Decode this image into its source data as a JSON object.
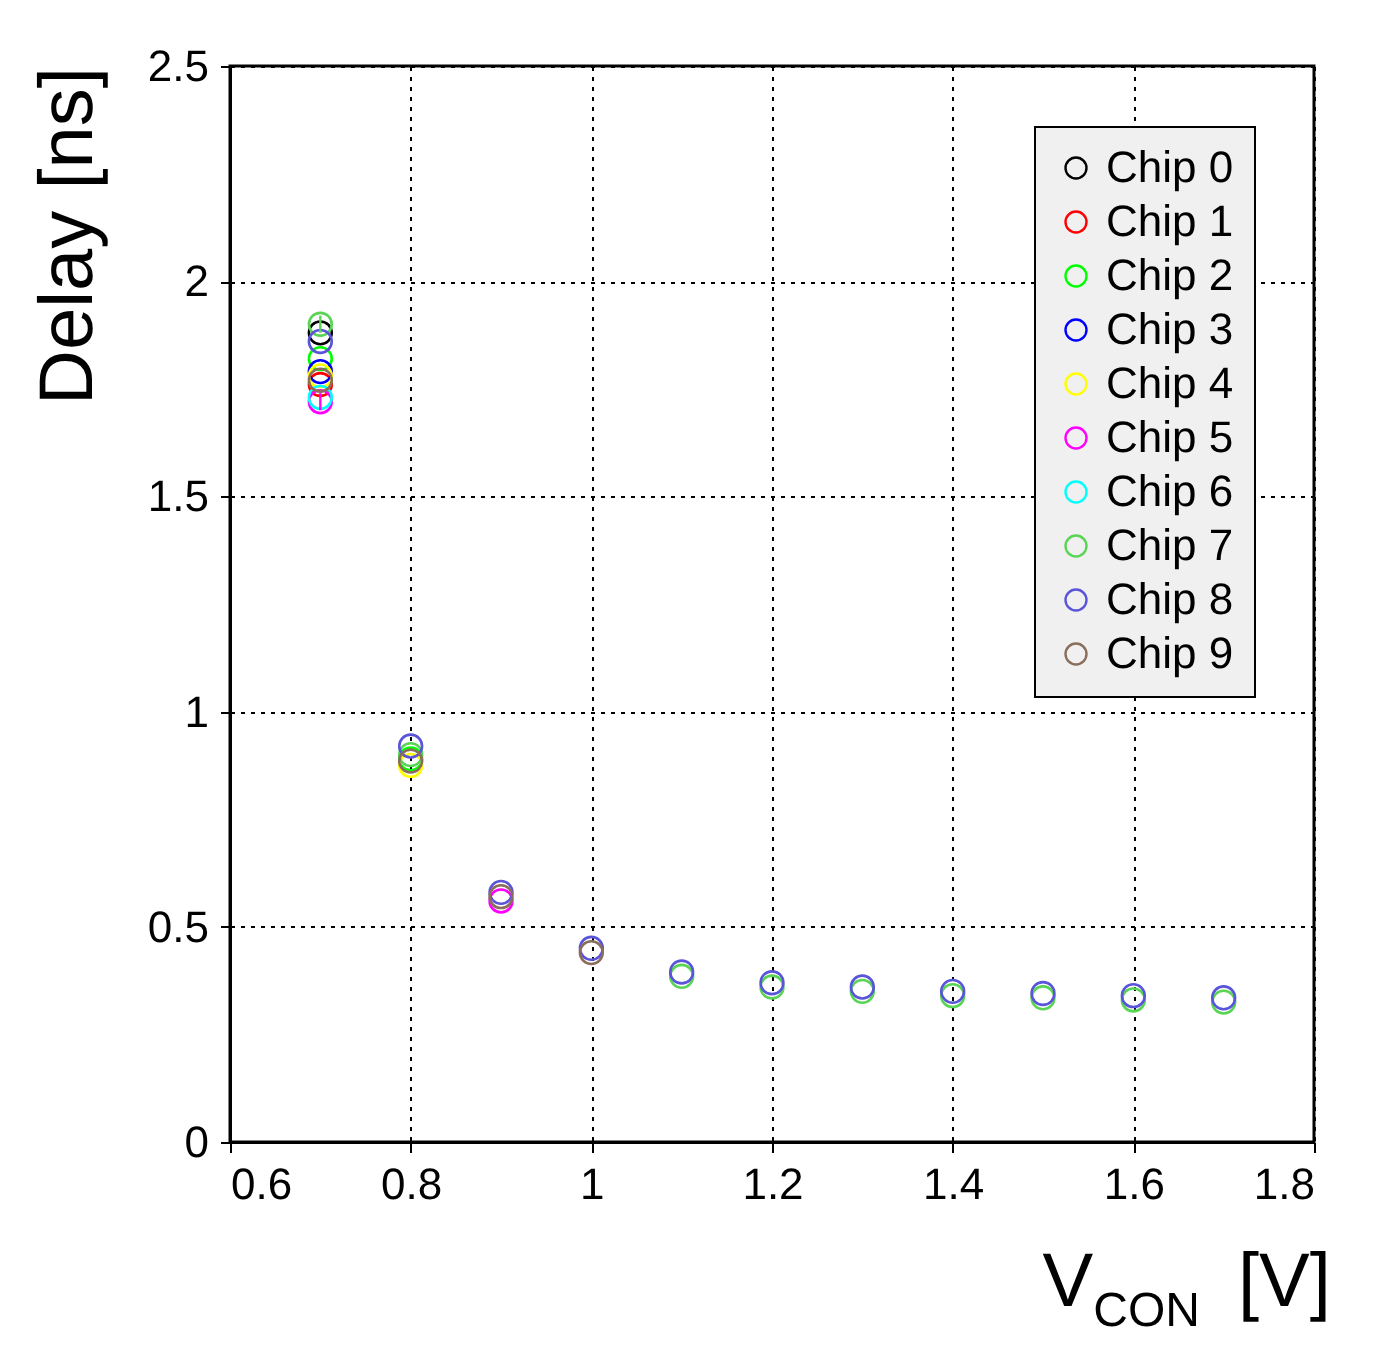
{
  "chart_data": {
    "type": "scatter",
    "xlabel": "V$_{CON}$ [V]",
    "ylabel": "Delay [ns]",
    "x": [
      0.7,
      0.8,
      0.9,
      1.0,
      1.1,
      1.2,
      1.3,
      1.4,
      1.5,
      1.6,
      1.7
    ],
    "xlim": [
      0.6,
      1.8
    ],
    "xticks": [
      0.6,
      0.8,
      {
        "value": 1,
        "label": "1"
      },
      1.2,
      1.4,
      1.6,
      1.8
    ],
    "ylim": [
      0,
      2.5
    ],
    "yticks": [
      {
        "value": 0,
        "label": "0"
      },
      0.5,
      {
        "value": 1,
        "label": "1"
      },
      1.5,
      {
        "value": 2,
        "label": "2"
      },
      2.5
    ],
    "grid": true,
    "legend": "top right",
    "marker": "circle",
    "series": [
      {
        "name": "Chip 0",
        "color": "#000000",
        "values": [
          1.88,
          null,
          null,
          null,
          null,
          null,
          null,
          null,
          null,
          null,
          null
        ]
      },
      {
        "name": "Chip 1",
        "color": "#ff0000",
        "values": [
          1.76,
          null,
          null,
          null,
          null,
          null,
          null,
          null,
          null,
          null,
          null
        ]
      },
      {
        "name": "Chip 2",
        "color": "#00ff00",
        "values": [
          1.82,
          0.89,
          null,
          null,
          null,
          null,
          null,
          null,
          null,
          null,
          null
        ]
      },
      {
        "name": "Chip 3",
        "color": "#0000ff",
        "values": [
          1.79,
          null,
          null,
          null,
          null,
          null,
          null,
          null,
          null,
          null,
          null
        ]
      },
      {
        "name": "Chip 4",
        "color": "#ffff00",
        "values": [
          1.78,
          0.875,
          null,
          null,
          null,
          null,
          null,
          null,
          null,
          null,
          null
        ]
      },
      {
        "name": "Chip 5",
        "color": "#ff00ff",
        "values": [
          1.72,
          null,
          0.56,
          null,
          null,
          null,
          null,
          null,
          null,
          null,
          null
        ],
        "errors": [
          0.02,
          null,
          null,
          null,
          null,
          null,
          null,
          null,
          null,
          null,
          null
        ]
      },
      {
        "name": "Chip 6",
        "color": "#00ffff",
        "values": [
          1.73,
          null,
          null,
          null,
          null,
          null,
          null,
          null,
          null,
          null,
          null
        ]
      },
      {
        "name": "Chip 7",
        "color": "#59d454",
        "values": [
          1.9,
          0.9,
          null,
          null,
          0.385,
          0.36,
          0.35,
          0.34,
          0.335,
          0.33,
          0.325
        ],
        "errors": [
          0.02,
          null,
          null,
          null,
          null,
          null,
          null,
          null,
          null,
          null,
          null
        ]
      },
      {
        "name": "Chip 8",
        "color": "#5954d9",
        "values": [
          1.86,
          0.92,
          0.58,
          0.45,
          0.395,
          0.37,
          0.36,
          0.35,
          0.345,
          0.34,
          0.335
        ]
      },
      {
        "name": "Chip 9",
        "color": "#8b6d5c",
        "values": [
          1.77,
          0.885,
          0.57,
          0.44,
          null,
          null,
          null,
          null,
          null,
          null,
          null
        ]
      }
    ]
  }
}
